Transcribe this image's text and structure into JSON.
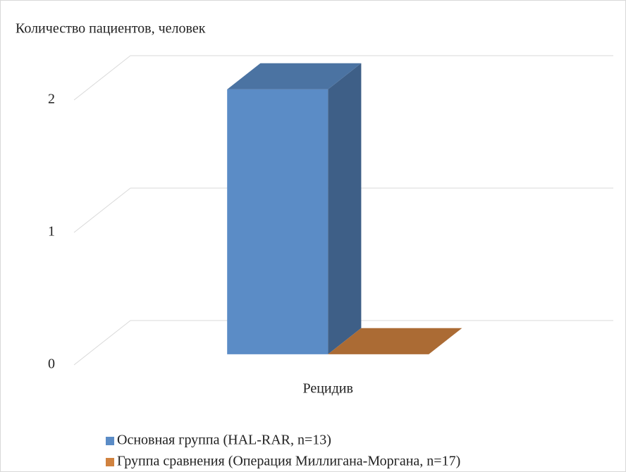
{
  "chart_data": {
    "type": "bar",
    "y_label": "Количество пациентов, человек",
    "categories": [
      "Рецидив"
    ],
    "series": [
      {
        "name": "Основная группа (HAL-RAR, n=13)",
        "color": "#5b8cc6",
        "values": [
          2
        ]
      },
      {
        "name": "Группа сравнения (Операция Миллигана-Моргана, n=17)",
        "color": "#d0823f",
        "values": [
          0
        ]
      }
    ],
    "ylim": [
      0,
      2
    ],
    "yticks": [
      0,
      1,
      2
    ],
    "grid": true,
    "legend": "bottom"
  }
}
